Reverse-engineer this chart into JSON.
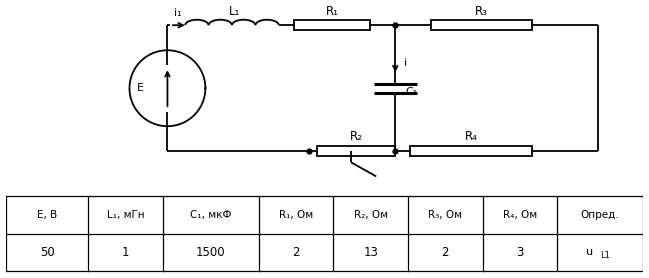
{
  "background_color": "#ffffff",
  "table_headers": [
    "E, В",
    "L₁, мГн",
    "C₁, мкФ",
    "R₁, Ом",
    "R₂, Ом",
    "R₃, Ом",
    "R₄, Ом",
    "Опред."
  ],
  "table_values": [
    "50",
    "1",
    "1500",
    "2",
    "13",
    "2",
    "3",
    "u_L1"
  ],
  "lw": 1.3
}
